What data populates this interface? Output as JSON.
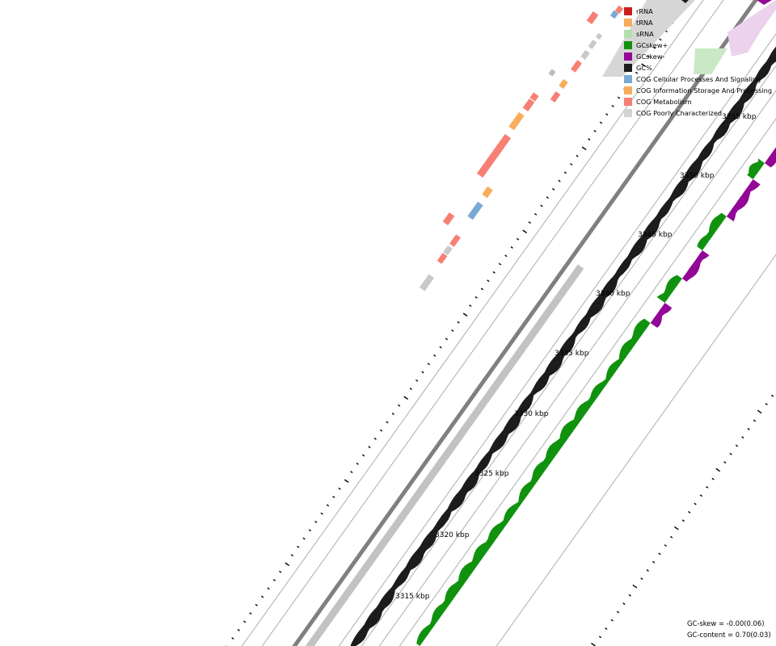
{
  "legend": {
    "items": [
      {
        "label": "rRNA",
        "color": "#cc1f1f",
        "icon": "rRNA-swatch"
      },
      {
        "label": "tRNA",
        "color": "#f8ad5c",
        "icon": "tRNA-swatch"
      },
      {
        "label": "sRNA",
        "color": "#b3dfad",
        "icon": "sRNA-swatch"
      },
      {
        "label": "GCskew+",
        "color": "#11920f",
        "icon": "gcskew-positive-swatch"
      },
      {
        "label": "GCskew-",
        "color": "#930797",
        "icon": "gcskew-negative-swatch"
      },
      {
        "label": "GC%",
        "color": "#1c1c1c",
        "icon": "gc-content-swatch"
      },
      {
        "label": "COG Cellular Processes And Signaling",
        "color": "#7aa9d6",
        "icon": "cog-cellular-swatch"
      },
      {
        "label": "COG Information Storage And Processing",
        "color": "#f8ad5c",
        "icon": "cog-information-swatch"
      },
      {
        "label": "COG Metabolism",
        "color": "#f77f74",
        "icon": "cog-metabolism-swatch"
      },
      {
        "label": "COG Poorly Characterized",
        "color": "#d3d3d3",
        "icon": "cog-poorly-swatch"
      }
    ]
  },
  "ruler": {
    "labels": [
      "3315 kbp",
      "3320 kbp",
      "3325 kbp",
      "3330 kbp",
      "3335 kbp",
      "3340 kbp",
      "3345 kbp",
      "3350 kbp",
      "3355 kbp"
    ]
  },
  "stats": {
    "gc_skew": "GC-skew = -0.00(0.06)",
    "gc_content": "GC-content = 0.70(0.03)"
  }
}
